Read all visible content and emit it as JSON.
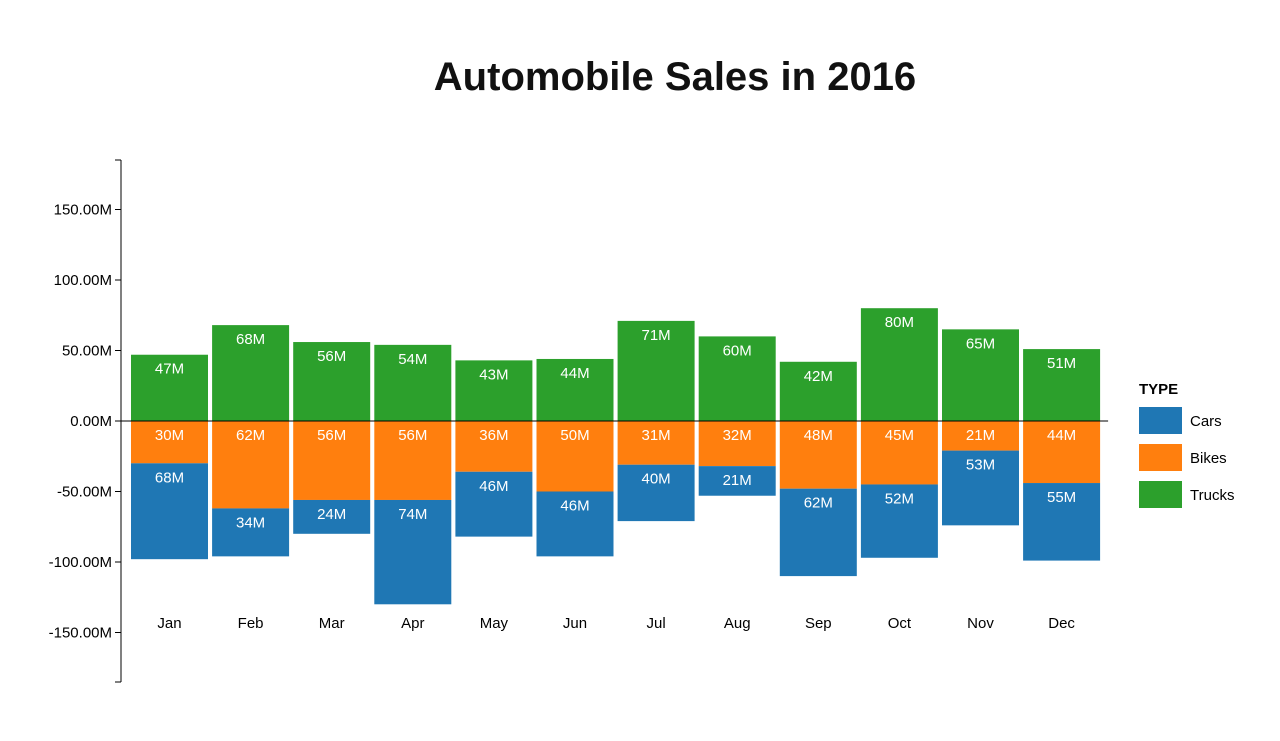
{
  "chart_data": {
    "type": "bar",
    "title": "Automobile Sales in 2016",
    "categories": [
      "Jan",
      "Feb",
      "Mar",
      "Apr",
      "May",
      "Jun",
      "Jul",
      "Aug",
      "Sep",
      "Oct",
      "Nov",
      "Dec"
    ],
    "series": [
      {
        "name": "Cars",
        "color": "#1f77b4",
        "direction": "negative",
        "values": [
          68,
          34,
          24,
          74,
          46,
          46,
          40,
          21,
          62,
          52,
          53,
          55
        ],
        "labels": [
          "68M",
          "34M",
          "24M",
          "74M",
          "46M",
          "46M",
          "40M",
          "21M",
          "62M",
          "52M",
          "53M",
          "55M"
        ]
      },
      {
        "name": "Bikes",
        "color": "#ff7f0e",
        "direction": "negative",
        "values": [
          30,
          62,
          56,
          56,
          36,
          50,
          31,
          32,
          48,
          45,
          21,
          44
        ],
        "labels": [
          "30M",
          "62M",
          "56M",
          "56M",
          "36M",
          "50M",
          "31M",
          "32M",
          "48M",
          "45M",
          "21M",
          "44M"
        ]
      },
      {
        "name": "Trucks",
        "color": "#2ca02c",
        "direction": "positive",
        "values": [
          47,
          68,
          56,
          54,
          43,
          44,
          71,
          60,
          42,
          80,
          65,
          51
        ],
        "labels": [
          "47M",
          "68M",
          "56M",
          "54M",
          "43M",
          "44M",
          "71M",
          "60M",
          "42M",
          "80M",
          "65M",
          "51M"
        ]
      }
    ],
    "ylim": [
      -185,
      185
    ],
    "yticks": [
      150,
      100,
      50,
      0,
      -50,
      -100,
      -150
    ],
    "ytick_labels": [
      "150.00M",
      "100.00M",
      "50.00M",
      "0.00M",
      "-50.00M",
      "-100.00M",
      "-150.00M"
    ],
    "stack_order_negative": [
      "Bikes",
      "Cars"
    ],
    "legend": {
      "title": "TYPE",
      "position": "right",
      "entries": [
        "Cars",
        "Bikes",
        "Trucks"
      ]
    },
    "grid": false
  }
}
